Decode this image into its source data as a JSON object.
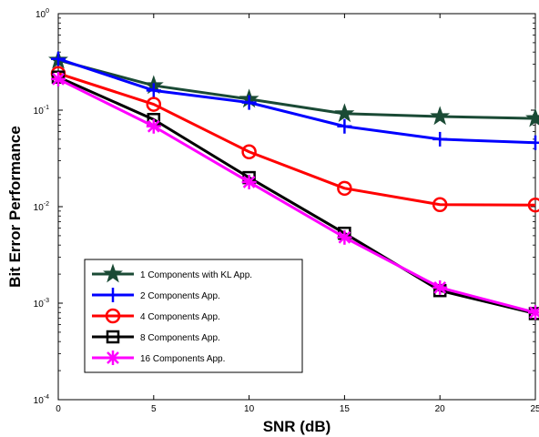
{
  "chart_data": {
    "type": "line",
    "title": "",
    "xlabel": "SNR (dB)",
    "ylabel": "Bit Error Performance",
    "x": [
      0,
      5,
      10,
      15,
      20,
      25
    ],
    "xlim": [
      0,
      25
    ],
    "ylim": [
      0.0001,
      1
    ],
    "yscale": "log",
    "xticks": [
      "0",
      "5",
      "10",
      "15",
      "20",
      "25"
    ],
    "yticks": [
      {
        "base": "10",
        "exp": "-4"
      },
      {
        "base": "10",
        "exp": "-3"
      },
      {
        "base": "10",
        "exp": "-2"
      },
      {
        "base": "10",
        "exp": "-1"
      },
      {
        "base": "10",
        "exp": "0"
      }
    ],
    "grid": false,
    "legend_position": "bottom-left",
    "series": [
      {
        "name": "1 Components with KL App.",
        "values": [
          0.33,
          0.18,
          0.13,
          0.092,
          0.086,
          0.082
        ],
        "color": "#1a4a35",
        "marker": "star"
      },
      {
        "name": "2 Components App.",
        "values": [
          0.34,
          0.16,
          0.12,
          0.068,
          0.05,
          0.046
        ],
        "color": "#0000ff",
        "marker": "plus"
      },
      {
        "name": "4 Components App.",
        "values": [
          0.24,
          0.115,
          0.037,
          0.0155,
          0.0105,
          0.0104
        ],
        "color": "#ff0000",
        "marker": "circle"
      },
      {
        "name": "8 Components App.",
        "values": [
          0.22,
          0.08,
          0.02,
          0.0053,
          0.00135,
          0.00078
        ],
        "color": "#000000",
        "marker": "square"
      },
      {
        "name": "16 Components App.",
        "values": [
          0.21,
          0.068,
          0.018,
          0.0048,
          0.00145,
          0.0008
        ],
        "color": "#ff00ff",
        "marker": "asterisk"
      }
    ]
  }
}
